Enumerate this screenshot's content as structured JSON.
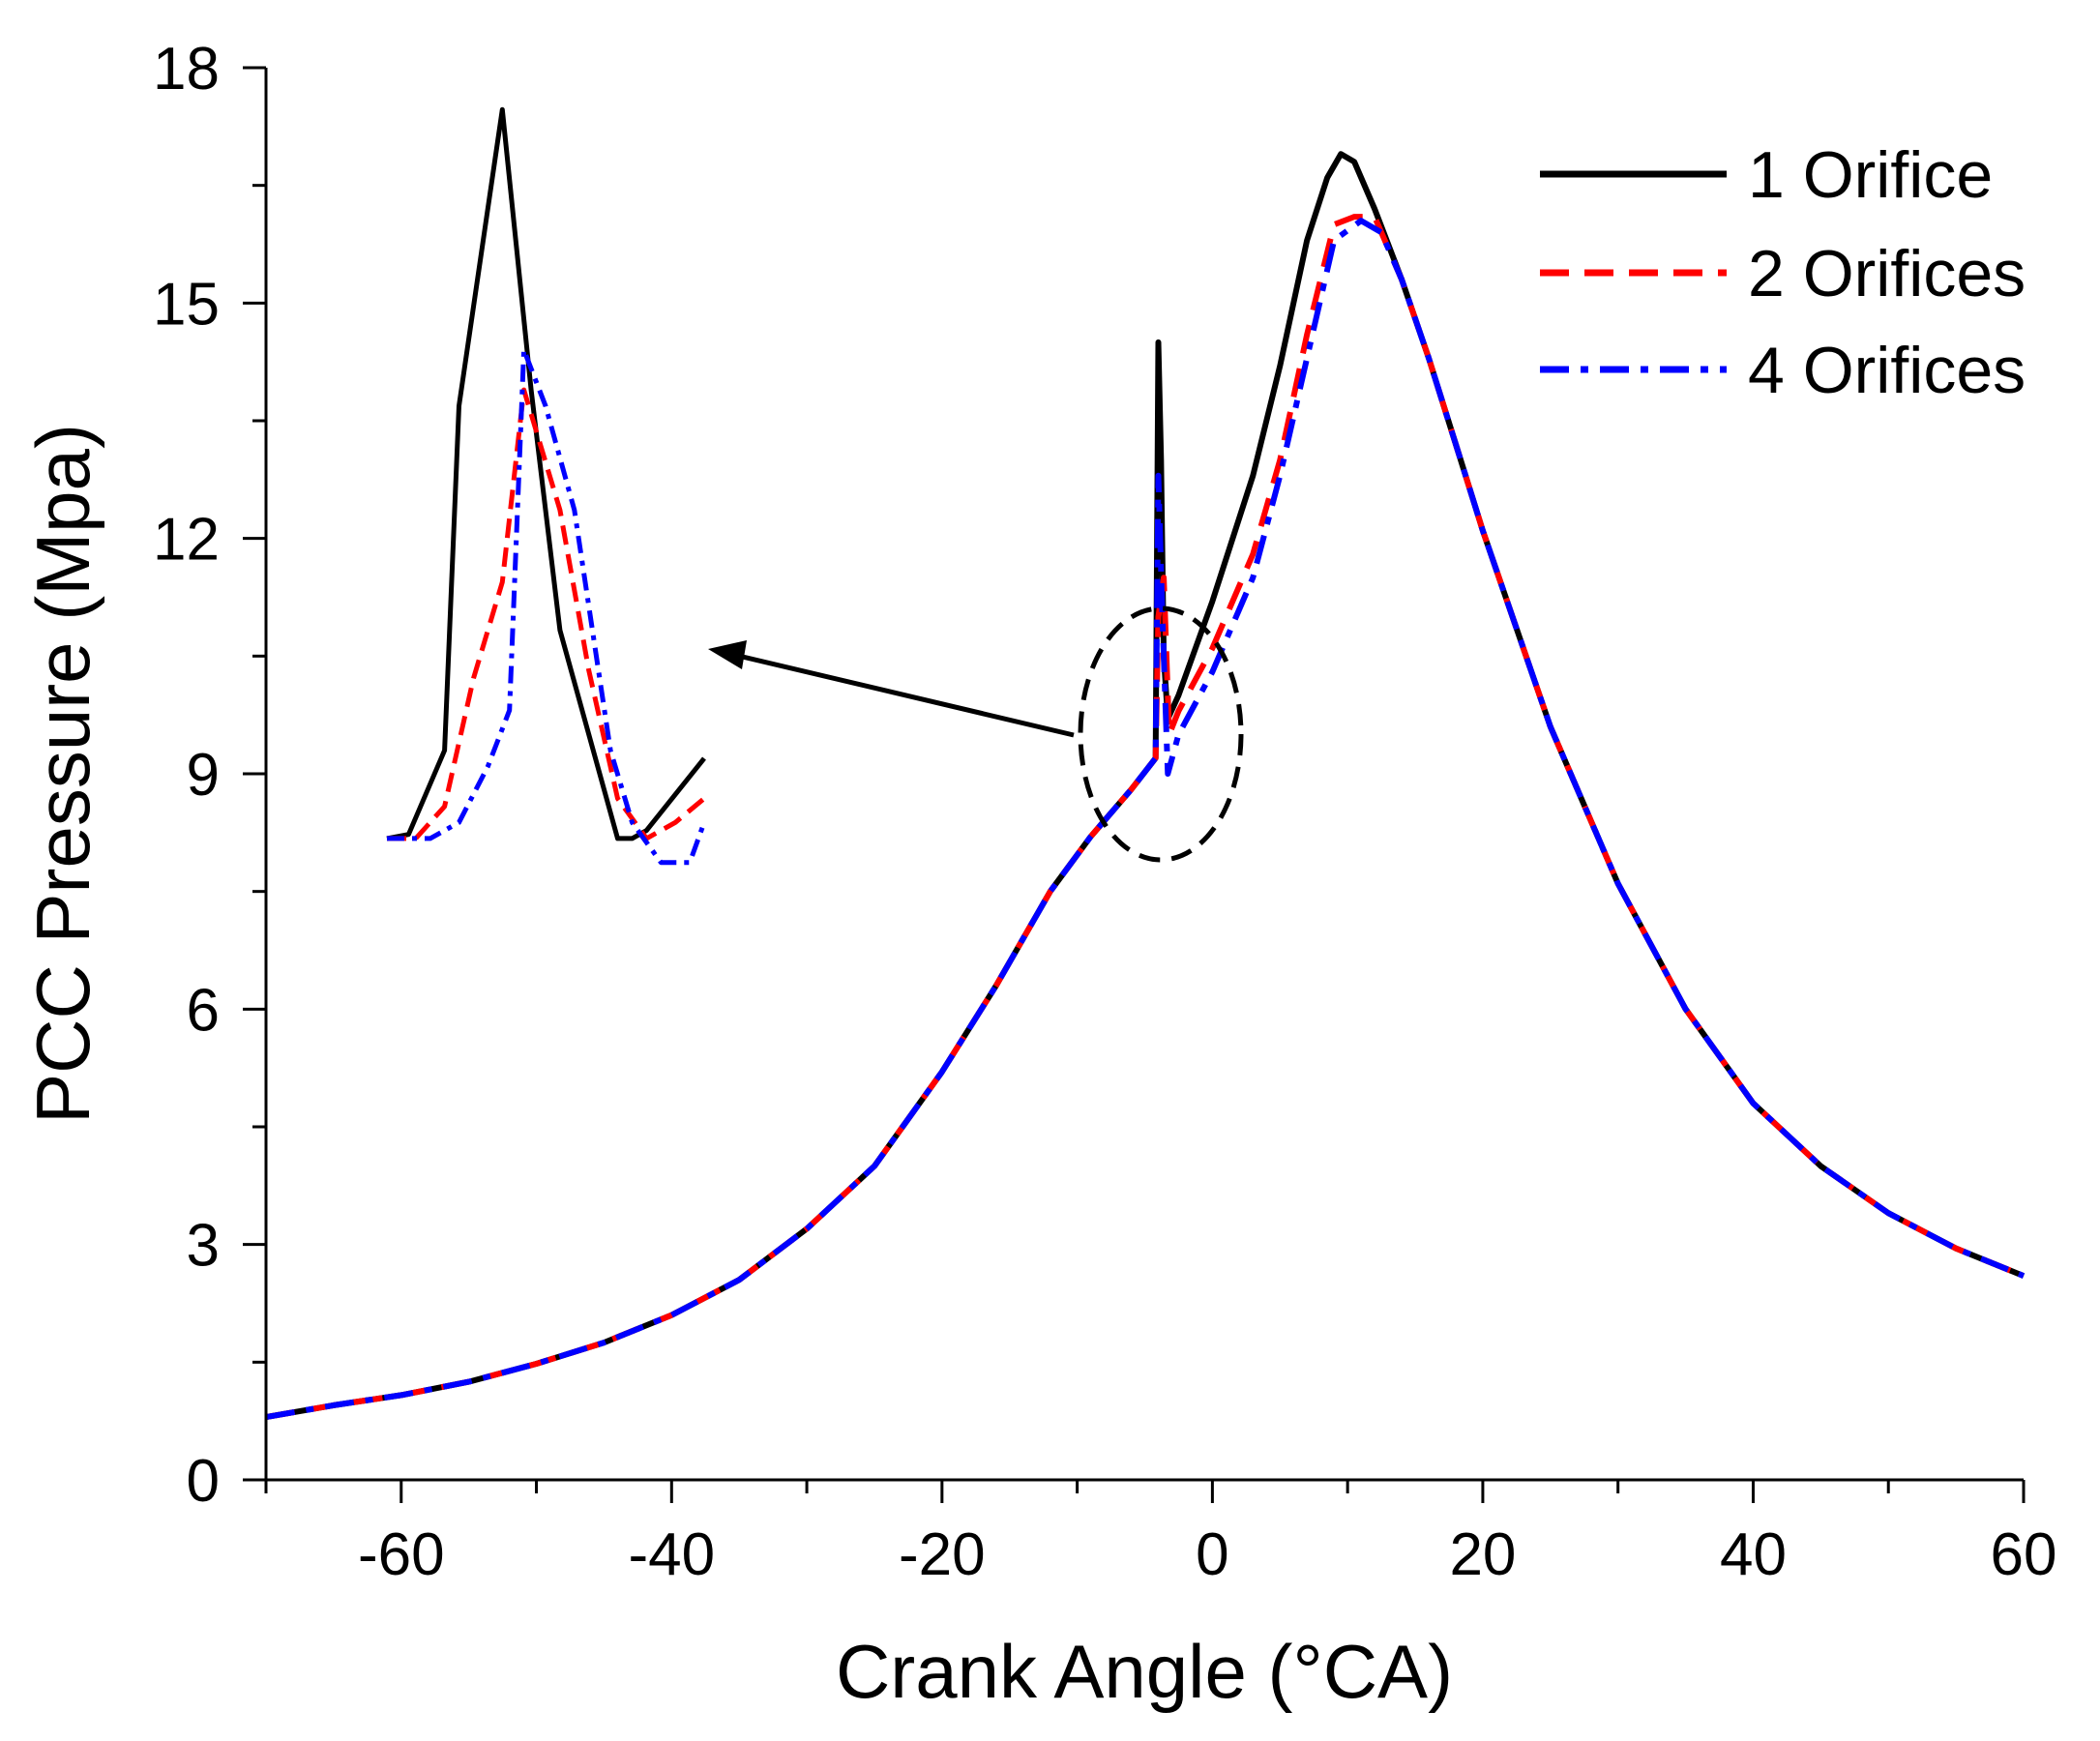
{
  "chart_data": {
    "type": "line",
    "title": "",
    "xlabel": "Crank Angle (°CA)",
    "ylabel": "PCC Pressure (Mpa)",
    "xlim": [
      -70,
      60
    ],
    "ylim": [
      0,
      18
    ],
    "x_ticks": [
      -60,
      -40,
      -20,
      0,
      20,
      40,
      60
    ],
    "y_ticks": [
      0,
      3,
      6,
      9,
      12,
      15,
      18
    ],
    "grid": false,
    "legend_position": "top-right",
    "colors": {
      "orifice_1": "#000000",
      "orifices_2": "#ff0000",
      "orifices_4": "#0000ff",
      "annotation": "#000000"
    },
    "series": [
      {
        "name": "1 Orifice",
        "color": "#000000",
        "dash": "solid",
        "points": [
          [
            -70,
            0.8
          ],
          [
            -65,
            0.95
          ],
          [
            -60,
            1.08
          ],
          [
            -55,
            1.25
          ],
          [
            -50,
            1.48
          ],
          [
            -45,
            1.75
          ],
          [
            -40,
            2.1
          ],
          [
            -35,
            2.55
          ],
          [
            -30,
            3.2
          ],
          [
            -25,
            4.0
          ],
          [
            -20,
            5.2
          ],
          [
            -16,
            6.3
          ],
          [
            -12,
            7.5
          ],
          [
            -9,
            8.2
          ],
          [
            -6,
            8.8
          ],
          [
            -4.2,
            9.2
          ],
          [
            -4.0,
            14.5
          ],
          [
            -3.8,
            13.0
          ],
          [
            -3.6,
            10.5
          ],
          [
            -3.3,
            9.7
          ],
          [
            -2.5,
            10.0
          ],
          [
            0,
            11.2
          ],
          [
            3,
            12.8
          ],
          [
            5,
            14.2
          ],
          [
            7,
            15.8
          ],
          [
            8.5,
            16.6
          ],
          [
            9.5,
            16.9
          ],
          [
            10.5,
            16.8
          ],
          [
            12,
            16.2
          ],
          [
            14,
            15.3
          ],
          [
            16,
            14.3
          ],
          [
            18,
            13.2
          ],
          [
            20,
            12.1
          ],
          [
            25,
            9.6
          ],
          [
            30,
            7.6
          ],
          [
            35,
            6.0
          ],
          [
            40,
            4.8
          ],
          [
            45,
            4.0
          ],
          [
            50,
            3.4
          ],
          [
            55,
            2.95
          ],
          [
            60,
            2.6
          ]
        ]
      },
      {
        "name": "2 Orifices",
        "color": "#ff0000",
        "dash": "dashed",
        "points": [
          [
            -70,
            0.8
          ],
          [
            -65,
            0.95
          ],
          [
            -60,
            1.08
          ],
          [
            -55,
            1.25
          ],
          [
            -50,
            1.48
          ],
          [
            -45,
            1.75
          ],
          [
            -40,
            2.1
          ],
          [
            -35,
            2.55
          ],
          [
            -30,
            3.2
          ],
          [
            -25,
            4.0
          ],
          [
            -20,
            5.2
          ],
          [
            -16,
            6.3
          ],
          [
            -12,
            7.5
          ],
          [
            -9,
            8.2
          ],
          [
            -6,
            8.8
          ],
          [
            -4.2,
            9.2
          ],
          [
            -4.0,
            11.0
          ],
          [
            -3.6,
            11.5
          ],
          [
            -3.2,
            9.5
          ],
          [
            -2.5,
            9.8
          ],
          [
            0,
            10.6
          ],
          [
            3,
            11.8
          ],
          [
            5,
            13.0
          ],
          [
            7,
            14.6
          ],
          [
            9,
            16.0
          ],
          [
            10.5,
            16.1
          ],
          [
            12,
            16.1
          ],
          [
            14,
            15.3
          ],
          [
            16,
            14.3
          ],
          [
            18,
            13.2
          ],
          [
            20,
            12.1
          ],
          [
            25,
            9.6
          ],
          [
            30,
            7.6
          ],
          [
            35,
            6.0
          ],
          [
            40,
            4.8
          ],
          [
            45,
            4.0
          ],
          [
            50,
            3.4
          ],
          [
            55,
            2.95
          ],
          [
            60,
            2.6
          ]
        ]
      },
      {
        "name": "4 Orifices",
        "color": "#0000ff",
        "dash": "dashdot",
        "points": [
          [
            -70,
            0.8
          ],
          [
            -65,
            0.95
          ],
          [
            -60,
            1.08
          ],
          [
            -55,
            1.25
          ],
          [
            -50,
            1.48
          ],
          [
            -45,
            1.75
          ],
          [
            -40,
            2.1
          ],
          [
            -35,
            2.55
          ],
          [
            -30,
            3.2
          ],
          [
            -25,
            4.0
          ],
          [
            -20,
            5.2
          ],
          [
            -16,
            6.3
          ],
          [
            -12,
            7.5
          ],
          [
            -9,
            8.2
          ],
          [
            -6,
            8.8
          ],
          [
            -4.2,
            9.2
          ],
          [
            -4.0,
            12.8
          ],
          [
            -3.7,
            11.0
          ],
          [
            -3.3,
            9.0
          ],
          [
            -2.5,
            9.5
          ],
          [
            0,
            10.3
          ],
          [
            3,
            11.5
          ],
          [
            5,
            12.8
          ],
          [
            7,
            14.3
          ],
          [
            9,
            15.8
          ],
          [
            11,
            16.05
          ],
          [
            12.5,
            15.9
          ],
          [
            14,
            15.3
          ],
          [
            16,
            14.3
          ],
          [
            18,
            13.2
          ],
          [
            20,
            12.1
          ],
          [
            25,
            9.6
          ],
          [
            30,
            7.6
          ],
          [
            35,
            6.0
          ],
          [
            40,
            4.8
          ],
          [
            45,
            4.0
          ],
          [
            50,
            3.4
          ],
          [
            55,
            2.95
          ],
          [
            60,
            2.6
          ]
        ]
      }
    ],
    "inset": {
      "description_free": true,
      "x_range": [
        -60,
        -38
      ],
      "y_range": [
        8,
        17.6
      ],
      "series": [
        {
          "name": "1 Orifice",
          "points": [
            [
              -60,
              8.4
            ],
            [
              -58.5,
              8.45
            ],
            [
              -56,
              9.5
            ],
            [
              -55,
              13.8
            ],
            [
              -52,
              17.5
            ],
            [
              -50,
              14.0
            ],
            [
              -48,
              11.0
            ],
            [
              -44,
              8.4
            ],
            [
              -43,
              8.4
            ],
            [
              -42,
              8.5
            ],
            [
              -38,
              9.4
            ]
          ]
        },
        {
          "name": "2 Orifices",
          "points": [
            [
              -60,
              8.4
            ],
            [
              -58,
              8.4
            ],
            [
              -56,
              8.8
            ],
            [
              -54,
              10.4
            ],
            [
              -52,
              11.6
            ],
            [
              -50.5,
              14.0
            ],
            [
              -48,
              12.5
            ],
            [
              -46,
              10.5
            ],
            [
              -44,
              8.9
            ],
            [
              -42,
              8.4
            ],
            [
              -40,
              8.6
            ],
            [
              -38,
              8.9
            ]
          ]
        },
        {
          "name": "4 Orifices",
          "points": [
            [
              -60,
              8.4
            ],
            [
              -57,
              8.4
            ],
            [
              -55,
              8.6
            ],
            [
              -53,
              9.3
            ],
            [
              -51.5,
              10.0
            ],
            [
              -50.5,
              14.5
            ],
            [
              -49,
              13.8
            ],
            [
              -47,
              12.5
            ],
            [
              -44.5,
              9.5
            ],
            [
              -43,
              8.6
            ],
            [
              -41,
              8.1
            ],
            [
              -39,
              8.1
            ],
            [
              -38,
              8.6
            ]
          ]
        }
      ]
    }
  }
}
